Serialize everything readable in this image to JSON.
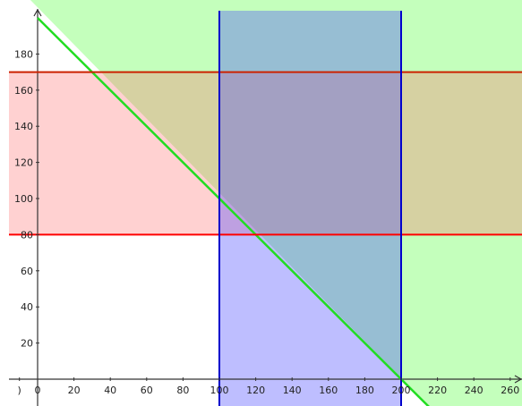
{
  "chart_data": {
    "type": "area",
    "title": "",
    "xlabel": "",
    "ylabel": "",
    "xlim": [
      -15,
      267
    ],
    "ylim": [
      -10,
      200
    ],
    "x_ticks": [
      {
        "value": -10,
        "label": ")"
      },
      {
        "value": 0,
        "label": "0"
      },
      {
        "value": 20,
        "label": "20"
      },
      {
        "value": 40,
        "label": "40"
      },
      {
        "value": 60,
        "label": "60"
      },
      {
        "value": 80,
        "label": "80"
      },
      {
        "value": 100,
        "label": "100"
      },
      {
        "value": 120,
        "label": "120"
      },
      {
        "value": 140,
        "label": "140"
      },
      {
        "value": 160,
        "label": "160"
      },
      {
        "value": 180,
        "label": "180"
      },
      {
        "value": 200,
        "label": "200"
      },
      {
        "value": 220,
        "label": "220"
      },
      {
        "value": 240,
        "label": "240"
      },
      {
        "value": 260,
        "label": "260"
      }
    ],
    "y_ticks": [
      20,
      40,
      60,
      80,
      100,
      120,
      140,
      160,
      180
    ],
    "grid": false,
    "regions": [
      {
        "id": "region-above-line",
        "inequality": "x + y >= 200",
        "color": "#7cff6a",
        "opacity": 0.45
      },
      {
        "id": "region-y-band",
        "inequality": "80 <= y <= 170",
        "color": "#ff6666",
        "opacity": 0.3
      },
      {
        "id": "region-x-band",
        "inequality": "100 <= x <= 200",
        "color": "#4444ff",
        "opacity": 0.35
      }
    ],
    "lines": [
      {
        "id": "line-x-plus-y-200",
        "equation": "x + y = 200",
        "points": [
          [
            0,
            200
          ],
          [
            218,
            -18
          ]
        ],
        "color": "#22dd22"
      },
      {
        "id": "line-y-80",
        "equation": "y = 80",
        "color": "#ff0000"
      },
      {
        "id": "line-y-170",
        "equation": "y = 170",
        "color": "#cc2200"
      },
      {
        "id": "line-x-100",
        "equation": "x = 100",
        "color": "#0000cc"
      },
      {
        "id": "line-x-200",
        "equation": "x = 200",
        "color": "#0000cc"
      }
    ]
  }
}
